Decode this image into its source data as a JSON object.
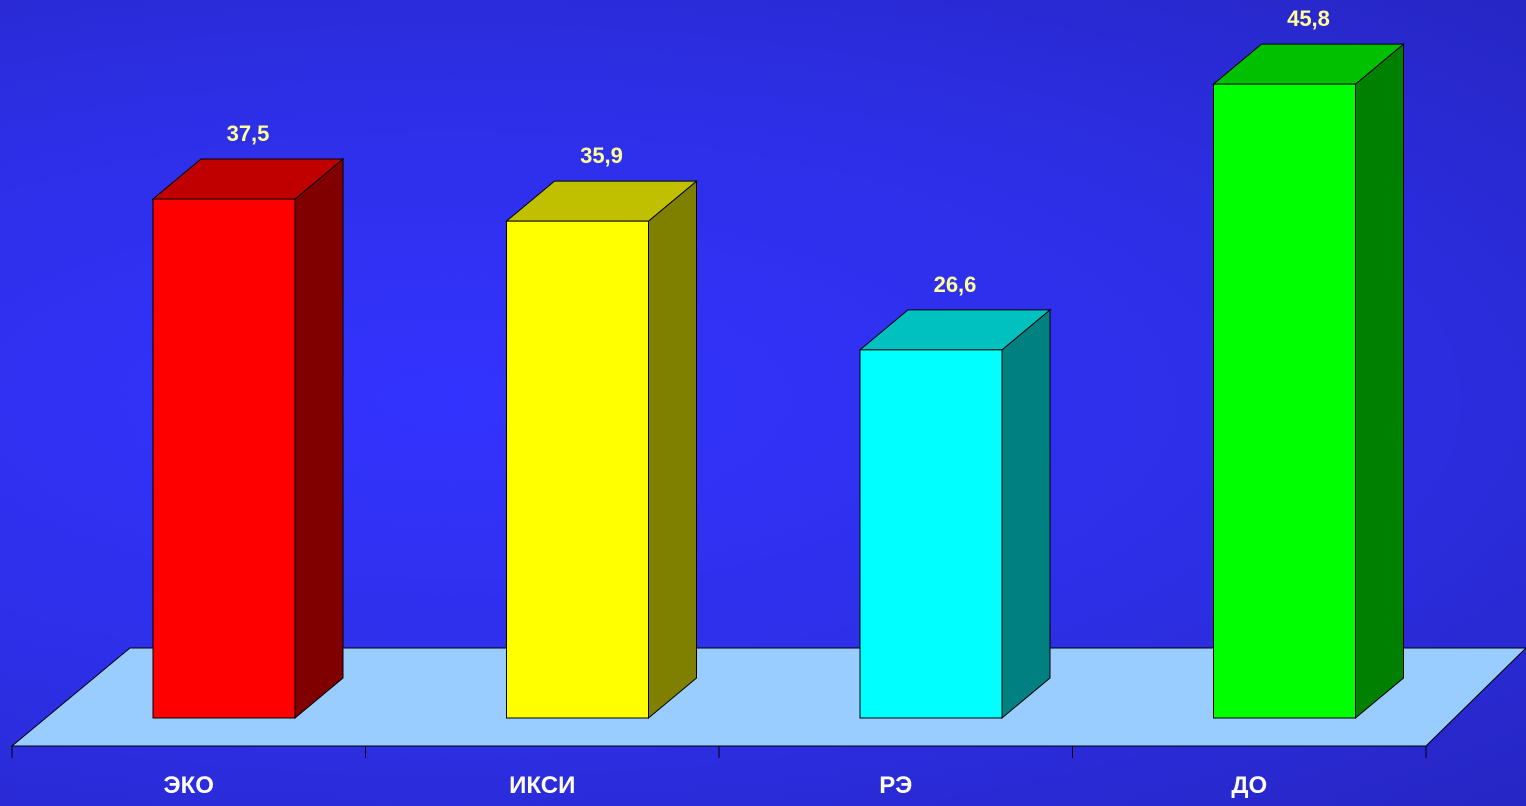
{
  "chart_data": {
    "type": "bar",
    "style": "3d-column",
    "categories": [
      "ЭКО",
      "ИКСИ",
      "РЭ",
      "ДО"
    ],
    "values": [
      37.5,
      35.9,
      26.6,
      45.8
    ],
    "value_labels": [
      "37,5",
      "35,9",
      "26,6",
      "45,8"
    ],
    "title": "",
    "xlabel": "",
    "ylabel": "",
    "ylim": [
      0,
      50
    ],
    "grid": false,
    "legend": "none",
    "colors": {
      "background": "#2f33f0",
      "floor": "#99ccff",
      "value_label": "#ffff99",
      "category_label": "#ffffff",
      "bars": [
        {
          "front": "#ff0000",
          "side": "#800000",
          "top": "#c00000"
        },
        {
          "front": "#ffff00",
          "side": "#808000",
          "top": "#c0c000"
        },
        {
          "front": "#00ffff",
          "side": "#008080",
          "top": "#00c0c0"
        },
        {
          "front": "#00ff00",
          "side": "#008000",
          "top": "#00c000"
        }
      ]
    }
  }
}
